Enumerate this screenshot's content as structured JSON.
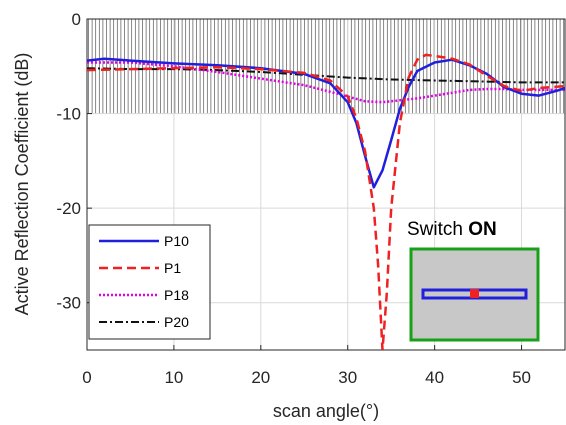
{
  "chart_data": {
    "type": "line",
    "xlabel": "scan angle(°)",
    "ylabel": "Active Reflection Coefficient (dB)",
    "xlim": [
      0,
      55
    ],
    "ylim": [
      -35,
      0
    ],
    "xticks": [
      0,
      10,
      20,
      30,
      40,
      50
    ],
    "yticks": [
      0,
      -10,
      -20,
      -30
    ],
    "grid": true,
    "shaded_band": {
      "y_from": -10,
      "y_to": 0,
      "pattern": "vertical-hatch"
    },
    "legend": {
      "placement": "bottom-left",
      "entries": [
        "P10",
        "P1",
        "P18",
        "P20"
      ]
    },
    "series": [
      {
        "name": "P10",
        "color": "#1f1fdc",
        "dash": "solid",
        "x": [
          0,
          2,
          5,
          10,
          15,
          20,
          25,
          28,
          30,
          31,
          32,
          33,
          34,
          35,
          36,
          37,
          38,
          40,
          42,
          44,
          46,
          48,
          50,
          52,
          54,
          55
        ],
        "y": [
          -4.4,
          -4.2,
          -4.4,
          -4.7,
          -4.9,
          -5.2,
          -5.8,
          -6.8,
          -8.8,
          -11,
          -14.5,
          -17.8,
          -16,
          -12.8,
          -9.5,
          -7.2,
          -5.5,
          -4.6,
          -4.3,
          -4.9,
          -5.8,
          -7.2,
          -7.9,
          -8.1,
          -7.6,
          -7.3
        ]
      },
      {
        "name": "P1",
        "color": "#ee2222",
        "dash": "dashed",
        "x": [
          0,
          5,
          10,
          15,
          20,
          25,
          28,
          30,
          31,
          32,
          33,
          33.5,
          34,
          34.5,
          35,
          36,
          37,
          38,
          39,
          40,
          42,
          44,
          46,
          48,
          50,
          52,
          55
        ],
        "y": [
          -5.4,
          -5.3,
          -5.2,
          -5.1,
          -5.3,
          -5.7,
          -6.5,
          -8.2,
          -10.5,
          -14,
          -20,
          -26,
          -35,
          -29,
          -20,
          -11,
          -6.2,
          -4.3,
          -3.8,
          -3.9,
          -4.2,
          -4.8,
          -6,
          -7.1,
          -7.6,
          -7.3,
          -7.1
        ]
      },
      {
        "name": "P18",
        "color": "#e400e4",
        "dash": "dotted",
        "x": [
          0,
          5,
          10,
          15,
          20,
          25,
          28,
          30,
          32,
          34,
          36,
          38,
          40,
          42,
          44,
          46,
          48,
          50,
          52,
          55
        ],
        "y": [
          -4.6,
          -4.6,
          -5,
          -5.6,
          -6.3,
          -7,
          -7.7,
          -8.2,
          -8.7,
          -8.8,
          -8.6,
          -8.4,
          -8.1,
          -7.8,
          -7.5,
          -7.4,
          -7.4,
          -7.5,
          -7.5,
          -7.5
        ]
      },
      {
        "name": "P20",
        "color": "#111111",
        "dash": "dashdot",
        "x": [
          0,
          5,
          10,
          15,
          20,
          25,
          30,
          35,
          40,
          45,
          50,
          55
        ],
        "y": [
          -5.2,
          -5.3,
          -5.3,
          -5.4,
          -5.6,
          -5.9,
          -6.2,
          -6.4,
          -6.5,
          -6.6,
          -6.7,
          -6.7
        ]
      }
    ]
  },
  "inset": {
    "title_prefix": "Switch ",
    "title_bold": "ON",
    "frame_color": "#19a019",
    "fill_color": "#c8c8c8",
    "bar_color": "#1f1fdc",
    "switch_color": "#ee2222"
  }
}
